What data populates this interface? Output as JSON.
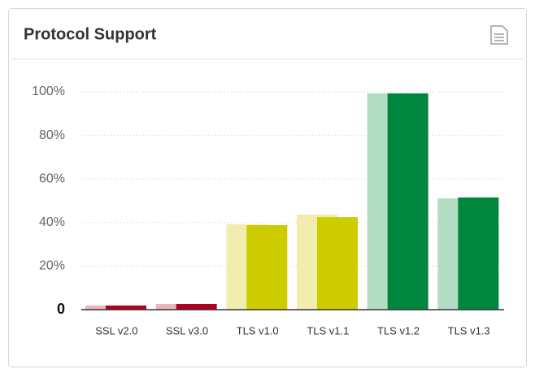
{
  "chart_data": {
    "type": "bar",
    "title": "Protocol Support",
    "categories": [
      "SSL v2.0",
      "SSL v3.0",
      "TLS v1.0",
      "TLS v1.1",
      "TLS v1.2",
      "TLS v1.3"
    ],
    "series": [
      {
        "colors": [
          "#e8b4bd",
          "#e8b4bd",
          "#f1edae",
          "#f1edae",
          "#b3dcc5",
          "#b3dcc5"
        ],
        "values": [
          1.9,
          2.6,
          39.2,
          43.7,
          99.3,
          51.1
        ]
      },
      {
        "colors": [
          "#b0001f",
          "#b0001f",
          "#cccc00",
          "#cccc00",
          "#00873d",
          "#00873d"
        ],
        "values": [
          1.9,
          2.6,
          38.8,
          42.5,
          99.3,
          51.5
        ]
      }
    ],
    "ylim": [
      0,
      100
    ],
    "yticks": [
      0,
      {
        "value": 20,
        "label": "20%"
      },
      {
        "value": 40,
        "label": "40%"
      },
      {
        "value": 60,
        "label": "60%"
      },
      {
        "value": 80,
        "label": "80%"
      },
      {
        "value": 100,
        "label": "100%"
      }
    ],
    "grid": true
  }
}
